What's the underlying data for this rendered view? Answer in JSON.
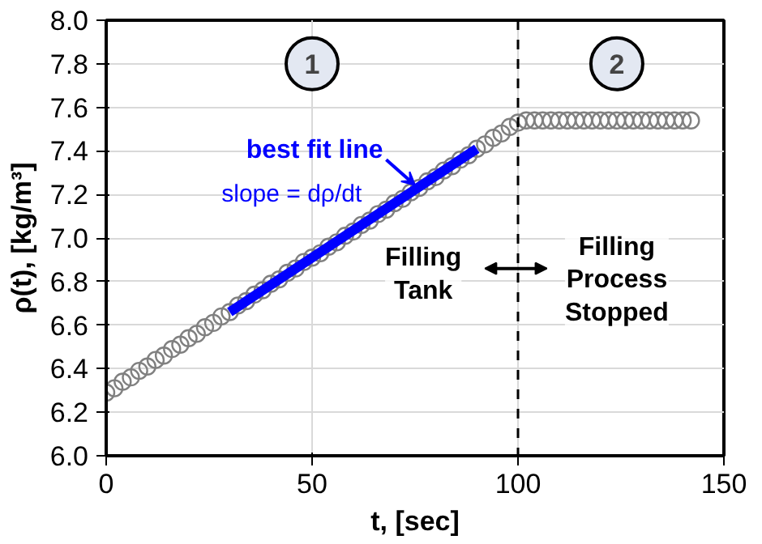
{
  "chart_data": {
    "type": "scatter",
    "xlabel": "t, [sec]",
    "ylabel": "ρ(t), [kg/m³]",
    "xlim": [
      0,
      150
    ],
    "xticks": [
      0,
      50,
      100,
      150
    ],
    "ylim": [
      6.0,
      8.0
    ],
    "yticks": [
      {
        "value": 6.0,
        "label": "6.0"
      },
      {
        "value": 6.2,
        "label": "6.2"
      },
      {
        "value": 6.4,
        "label": "6.4"
      },
      {
        "value": 6.6,
        "label": "6.6"
      },
      {
        "value": 6.8,
        "label": "6.8"
      },
      {
        "value": 7.0,
        "label": "7.0"
      },
      {
        "value": 7.2,
        "label": "7.2"
      },
      {
        "value": 7.4,
        "label": "7.4"
      },
      {
        "value": 7.6,
        "label": "7.6"
      },
      {
        "value": 7.8,
        "label": "7.8"
      },
      {
        "value": 8.0,
        "label": "8.0"
      }
    ],
    "grid": true,
    "series": [
      {
        "color": "#808080",
        "marker": "circle",
        "x": [
          0,
          2,
          4,
          6,
          8,
          10,
          12,
          14,
          16,
          18,
          20,
          22,
          24,
          26,
          28,
          30,
          32,
          34,
          36,
          38,
          40,
          42,
          44,
          46,
          48,
          50,
          52,
          54,
          56,
          58,
          60,
          62,
          64,
          66,
          68,
          70,
          72,
          74,
          76,
          78,
          80,
          82,
          84,
          86,
          88,
          90,
          92,
          94,
          96,
          98,
          100,
          102,
          104,
          106,
          108,
          110,
          112,
          114,
          116,
          118,
          120,
          122,
          124,
          126,
          128,
          130,
          132,
          134,
          136,
          138,
          140,
          142
        ],
        "values": [
          6.29,
          6.31,
          6.34,
          6.36,
          6.39,
          6.41,
          6.44,
          6.46,
          6.49,
          6.51,
          6.54,
          6.56,
          6.59,
          6.61,
          6.64,
          6.66,
          6.69,
          6.71,
          6.74,
          6.76,
          6.79,
          6.81,
          6.84,
          6.86,
          6.89,
          6.91,
          6.93,
          6.96,
          6.98,
          7.01,
          7.03,
          7.06,
          7.08,
          7.11,
          7.13,
          7.16,
          7.18,
          7.21,
          7.23,
          7.26,
          7.28,
          7.31,
          7.33,
          7.36,
          7.38,
          7.41,
          7.43,
          7.46,
          7.48,
          7.51,
          7.53,
          7.54,
          7.54,
          7.54,
          7.54,
          7.54,
          7.54,
          7.54,
          7.54,
          7.54,
          7.54,
          7.54,
          7.54,
          7.54,
          7.54,
          7.54,
          7.54,
          7.54,
          7.54,
          7.54,
          7.54,
          7.54
        ]
      },
      {
        "type": "line",
        "name": "best fit line",
        "color": "#0000ff",
        "marker": "none",
        "x": [
          30,
          90
        ],
        "values": [
          6.66,
          7.41
        ]
      }
    ],
    "ref_lines": [
      {
        "axis": "x",
        "value": 100,
        "color": "#000000",
        "line_style": "dashed"
      }
    ],
    "annotations": [
      "1",
      "2",
      "slope = dρ/dt",
      "Filling\nTank",
      "Filling\nProcess\nStopped"
    ]
  }
}
